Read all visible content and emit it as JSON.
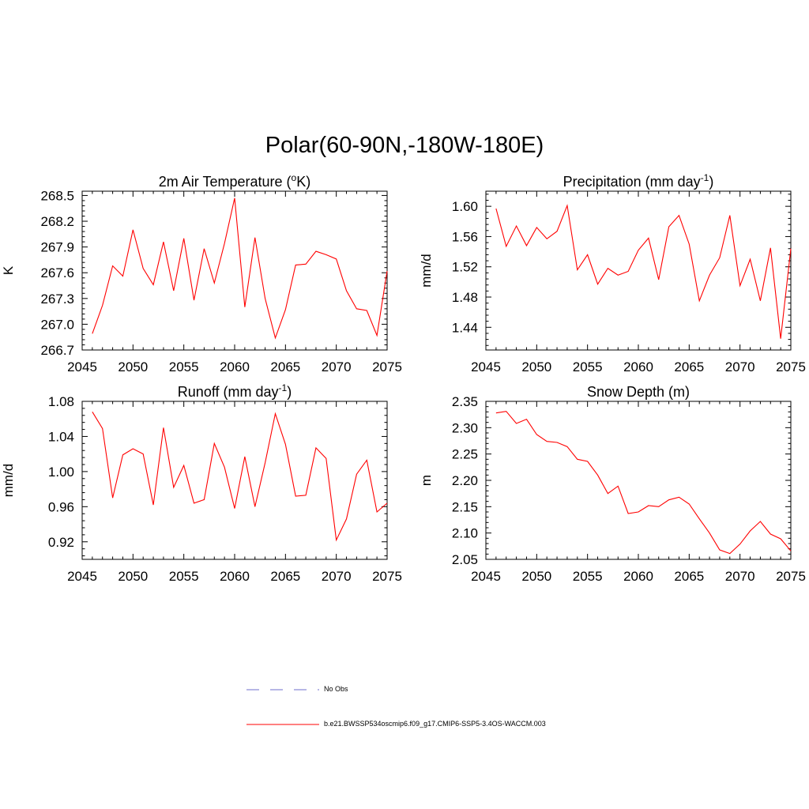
{
  "figure": {
    "title": "Polar(60-90N,-180W-180E)"
  },
  "legend": {
    "entries": [
      {
        "label": "No Obs",
        "color": "#8c8cd8",
        "style": "dashed"
      },
      {
        "label": "b.e21.BWSSP534oscmip6.f09_g17.CMIP6-SSP5-3.4OS-WACCM.003",
        "color": "#ff0000",
        "style": "solid"
      }
    ]
  },
  "chart_data": [
    {
      "type": "line",
      "title": "2m Air Temperature (",
      "title_sup": "o",
      "title_tail": "K)",
      "ylabel": "K",
      "xlim": [
        2045,
        2075
      ],
      "ylim": [
        266.7,
        268.55
      ],
      "xticks": [
        "2045",
        "2050",
        "2055",
        "2060",
        "2065",
        "2070",
        "2075"
      ],
      "yticks": [
        "266.7",
        "267.0",
        "267.3",
        "267.6",
        "267.9",
        "268.2",
        "268.5"
      ],
      "color": "#ff0000",
      "x": [
        2046,
        2047,
        2048,
        2049,
        2050,
        2051,
        2052,
        2053,
        2054,
        2055,
        2056,
        2057,
        2058,
        2059,
        2060,
        2061,
        2062,
        2063,
        2064,
        2065,
        2066,
        2067,
        2068,
        2069,
        2070,
        2071,
        2072,
        2073,
        2074,
        2075
      ],
      "values": [
        266.89,
        267.22,
        267.68,
        267.56,
        268.1,
        267.65,
        267.46,
        267.96,
        267.39,
        268.0,
        267.28,
        267.88,
        267.48,
        267.94,
        268.47,
        267.2,
        268.01,
        267.3,
        266.84,
        267.17,
        267.69,
        267.7,
        267.85,
        267.81,
        267.76,
        267.39,
        267.18,
        267.16,
        266.87,
        267.62
      ]
    },
    {
      "type": "line",
      "title": "Precipitation (mm day",
      "title_sup": "-1",
      "title_tail": ")",
      "ylabel": "mm/d",
      "xlim": [
        2045,
        2075
      ],
      "ylim": [
        1.41,
        1.62
      ],
      "xticks": [
        "2045",
        "2050",
        "2055",
        "2060",
        "2065",
        "2070",
        "2075"
      ],
      "yticks": [
        "1.44",
        "1.48",
        "1.52",
        "1.56",
        "1.60"
      ],
      "color": "#ff0000",
      "x": [
        2046,
        2047,
        2048,
        2049,
        2050,
        2051,
        2052,
        2053,
        2054,
        2055,
        2056,
        2057,
        2058,
        2059,
        2060,
        2061,
        2062,
        2063,
        2064,
        2065,
        2066,
        2067,
        2068,
        2069,
        2070,
        2071,
        2072,
        2073,
        2074,
        2075
      ],
      "values": [
        1.597,
        1.547,
        1.574,
        1.548,
        1.572,
        1.557,
        1.567,
        1.601,
        1.516,
        1.536,
        1.497,
        1.518,
        1.509,
        1.514,
        1.542,
        1.558,
        1.503,
        1.573,
        1.588,
        1.55,
        1.475,
        1.509,
        1.532,
        1.588,
        1.495,
        1.53,
        1.475,
        1.545,
        1.425,
        1.544
      ]
    },
    {
      "type": "line",
      "title": "Runoff (mm day",
      "title_sup": "-1",
      "title_tail": ")",
      "ylabel": "mm/d",
      "xlim": [
        2045,
        2075
      ],
      "ylim": [
        0.9,
        1.08
      ],
      "xticks": [
        "2045",
        "2050",
        "2055",
        "2060",
        "2065",
        "2070",
        "2075"
      ],
      "yticks": [
        "0.92",
        "0.96",
        "1.00",
        "1.04",
        "1.08"
      ],
      "color": "#ff0000",
      "x": [
        2046,
        2047,
        2048,
        2049,
        2050,
        2051,
        2052,
        2053,
        2054,
        2055,
        2056,
        2057,
        2058,
        2059,
        2060,
        2061,
        2062,
        2063,
        2064,
        2065,
        2066,
        2067,
        2068,
        2069,
        2070,
        2071,
        2072,
        2073,
        2074,
        2075
      ],
      "values": [
        1.068,
        1.049,
        0.97,
        1.019,
        1.026,
        1.02,
        0.962,
        1.05,
        0.982,
        1.007,
        0.964,
        0.968,
        1.032,
        1.005,
        0.958,
        1.017,
        0.96,
        1.01,
        1.066,
        1.031,
        0.972,
        0.973,
        1.027,
        1.015,
        0.922,
        0.946,
        0.997,
        1.013,
        0.954,
        0.964
      ]
    },
    {
      "type": "line",
      "title": "Snow Depth (m)",
      "title_sup": "",
      "title_tail": "",
      "ylabel": "m",
      "xlim": [
        2045,
        2075
      ],
      "ylim": [
        2.05,
        2.35
      ],
      "xticks": [
        "2045",
        "2050",
        "2055",
        "2060",
        "2065",
        "2070",
        "2075"
      ],
      "yticks": [
        "2.05",
        "2.10",
        "2.15",
        "2.20",
        "2.25",
        "2.30",
        "2.35"
      ],
      "color": "#ff0000",
      "x": [
        2046,
        2047,
        2048,
        2049,
        2050,
        2051,
        2052,
        2053,
        2054,
        2055,
        2056,
        2057,
        2058,
        2059,
        2060,
        2061,
        2062,
        2063,
        2064,
        2065,
        2066,
        2067,
        2068,
        2069,
        2070,
        2071,
        2072,
        2073,
        2074,
        2075
      ],
      "values": [
        2.328,
        2.331,
        2.308,
        2.316,
        2.287,
        2.274,
        2.272,
        2.264,
        2.24,
        2.236,
        2.21,
        2.175,
        2.189,
        2.137,
        2.14,
        2.152,
        2.15,
        2.163,
        2.168,
        2.155,
        2.127,
        2.1,
        2.068,
        2.061,
        2.079,
        2.104,
        2.122,
        2.098,
        2.089,
        2.066
      ]
    }
  ]
}
